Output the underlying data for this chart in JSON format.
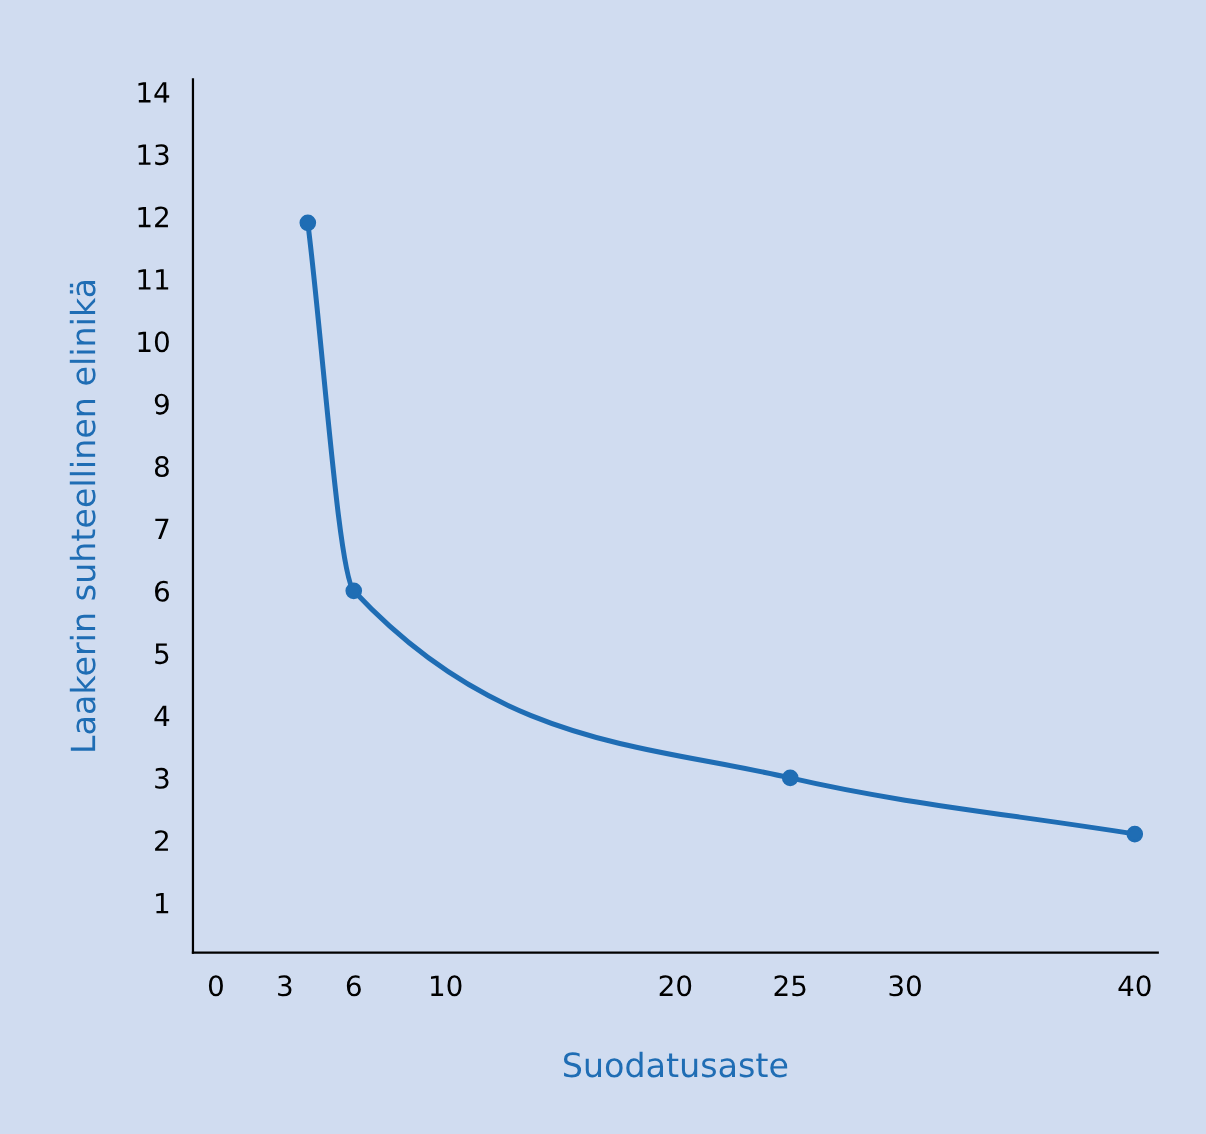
{
  "chart_data": {
    "type": "line",
    "xlabel": "Suodatusaste",
    "ylabel": "Laakerin suhteellinen elinikä",
    "x": [
      4,
      6,
      25,
      40
    ],
    "series": [
      {
        "color": "#1f6db4",
        "values": [
          11.9,
          6,
          3,
          2.1
        ]
      }
    ],
    "xlim": [
      -1,
      41
    ],
    "xticks": [
      0,
      3,
      6,
      10,
      20,
      25,
      30,
      40
    ],
    "ylim": [
      0.2,
      14.2
    ],
    "yticks": [
      1,
      2,
      3,
      4,
      5,
      6,
      7,
      8,
      9,
      10,
      11,
      12,
      13,
      14
    ],
    "marker": "circle",
    "line_style": "solid",
    "grid": false,
    "legend": false
  }
}
